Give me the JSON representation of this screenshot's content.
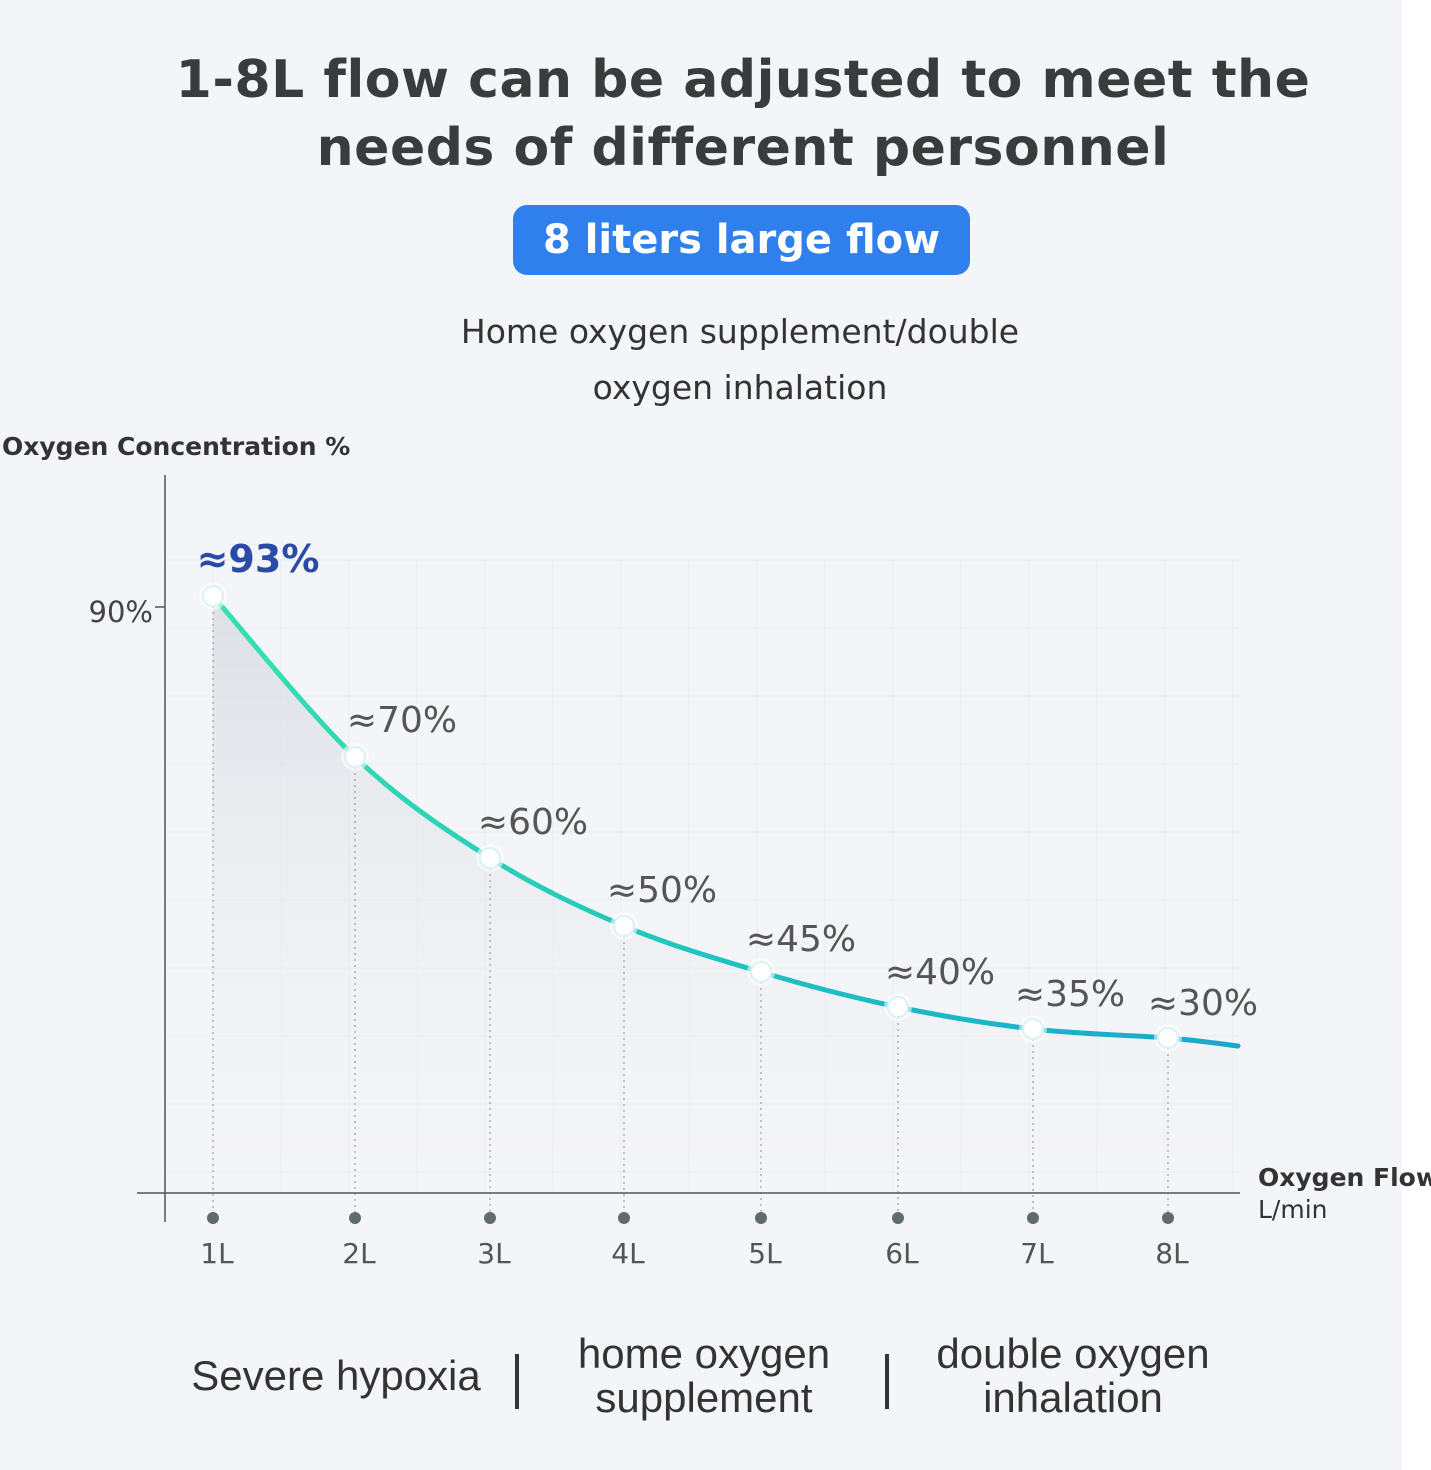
{
  "headline": {
    "line1": "1-8L flow can be adjusted to meet the",
    "line2": "needs of different personnel"
  },
  "badge": "8 liters large flow",
  "subtitle": {
    "line1": "Home oxygen supplement/double",
    "line2": "oxygen inhalation"
  },
  "colors": {
    "accent_blue": "#2f80ec",
    "curve": "#25c4b0",
    "highlight_label": "#2a4aa8",
    "background": "#f4f5f8"
  },
  "chart_data": {
    "type": "line",
    "ylabel": "Oxygen Concentration %",
    "xlabel": "Oxygen Flow",
    "xunit": "L/min",
    "yticks": [
      "90%"
    ],
    "categories": [
      "1L",
      "2L",
      "3L",
      "4L",
      "5L",
      "6L",
      "7L",
      "8L"
    ],
    "x": [
      1,
      2,
      3,
      4,
      5,
      6,
      7,
      8
    ],
    "values": [
      93,
      70,
      60,
      50,
      45,
      40,
      35,
      30
    ],
    "data_labels": [
      "≈93%",
      "≈70%",
      "≈60%",
      "≈50%",
      "≈45%",
      "≈40%",
      "≈35%",
      "≈30%"
    ],
    "highlight_index": 0,
    "grid": true
  },
  "categories": {
    "severe": "Severe hypoxia",
    "home_line1": "home oxygen",
    "home_line2": "supplement",
    "double_line1": "double oxygen",
    "double_line2": "inhalation"
  }
}
